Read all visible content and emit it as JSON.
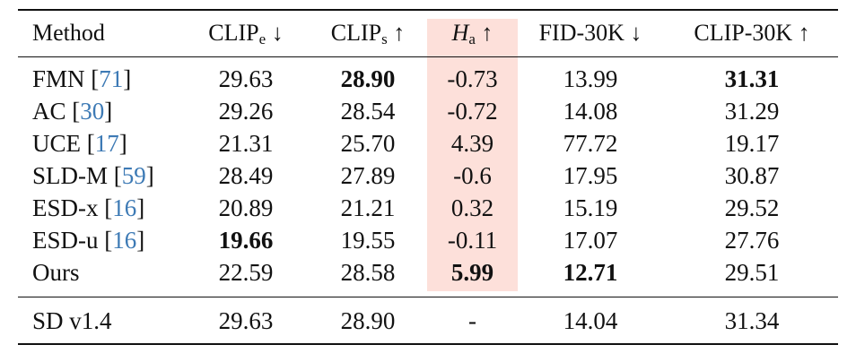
{
  "header": {
    "method": "Method",
    "clip_e": {
      "base": "CLIP",
      "sub": "e",
      "arrow": "↓"
    },
    "clip_s": {
      "base": "CLIP",
      "sub": "s",
      "arrow": "↑"
    },
    "h_a": {
      "base": "H",
      "sub": "a",
      "arrow": "↑"
    },
    "fid": "FID-30K ↓",
    "clip30k": "CLIP-30K ↑"
  },
  "highlight_color": "#fde0da",
  "rows": [
    {
      "name": "FMN",
      "ref": "71",
      "values": [
        "29.63",
        "28.90",
        "-0.73",
        "13.99",
        "31.31"
      ],
      "bold": [
        false,
        true,
        false,
        false,
        true
      ]
    },
    {
      "name": "AC",
      "ref": "30",
      "values": [
        "29.26",
        "28.54",
        "-0.72",
        "14.08",
        "31.29"
      ],
      "bold": [
        false,
        false,
        false,
        false,
        false
      ]
    },
    {
      "name": "UCE",
      "ref": "17",
      "values": [
        "21.31",
        "25.70",
        "4.39",
        "77.72",
        "19.17"
      ],
      "bold": [
        false,
        false,
        false,
        false,
        false
      ]
    },
    {
      "name": "SLD-M",
      "ref": "59",
      "values": [
        "28.49",
        "27.89",
        "-0.6",
        "17.95",
        "30.87"
      ],
      "bold": [
        false,
        false,
        false,
        false,
        false
      ]
    },
    {
      "name": "ESD-x",
      "ref": "16",
      "values": [
        "20.89",
        "21.21",
        "0.32",
        "15.19",
        "29.52"
      ],
      "bold": [
        false,
        false,
        false,
        false,
        false
      ]
    },
    {
      "name": "ESD-u",
      "ref": "16",
      "values": [
        "19.66",
        "19.55",
        "-0.11",
        "17.07",
        "27.76"
      ],
      "bold": [
        true,
        false,
        false,
        false,
        false
      ]
    },
    {
      "name": "Ours",
      "ref": "",
      "values": [
        "22.59",
        "28.58",
        "5.99",
        "12.71",
        "29.51"
      ],
      "bold": [
        false,
        false,
        true,
        true,
        false
      ]
    }
  ],
  "baseline": {
    "name": "SD v1.4",
    "values": [
      "29.63",
      "28.90",
      "-",
      "14.04",
      "31.34"
    ]
  }
}
